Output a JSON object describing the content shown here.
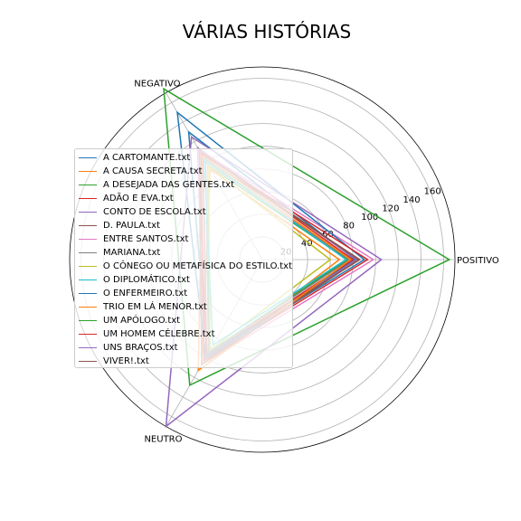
{
  "chart_data": {
    "type": "radar",
    "title": "VÁRIAS HISTÓRIAS",
    "axes": [
      "POSITIVO",
      "NEGATIVO",
      "NEUTRO"
    ],
    "rlim": [
      0,
      170
    ],
    "rticks": [
      20,
      40,
      60,
      80,
      100,
      120,
      140,
      160
    ],
    "grid": true,
    "legend_position": "center-left",
    "series": [
      {
        "name": "A CARTOMANTE.txt",
        "color": "#1f77b4",
        "values": [
          82,
          130,
          97
        ]
      },
      {
        "name": "A CAUSA SECRETA.txt",
        "color": "#ff7f0e",
        "values": [
          68,
          92,
          107
        ]
      },
      {
        "name": "A DESEJADA DAS GENTES.txt",
        "color": "#2ca02c",
        "values": [
          75,
          96,
          94
        ]
      },
      {
        "name": "ADÃO E EVA.txt",
        "color": "#d62728",
        "values": [
          80,
          112,
          99
        ]
      },
      {
        "name": "CONTO DE ESCOLA.txt",
        "color": "#9467bd",
        "values": [
          83,
          114,
          103
        ]
      },
      {
        "name": "D. PAULA.txt",
        "color": "#8c564b",
        "values": [
          86,
          105,
          98
        ]
      },
      {
        "name": "ENTRE SANTOS.txt",
        "color": "#e377c2",
        "values": [
          98,
          112,
          107
        ]
      },
      {
        "name": "MARIANA.txt",
        "color": "#7f7f7f",
        "values": [
          77,
          100,
          95
        ]
      },
      {
        "name": "O CÔNEGO OU METAFÍSICA DO ESTILO.txt",
        "color": "#bcbd22",
        "values": [
          60,
          95,
          92
        ]
      },
      {
        "name": "O DIPLOMÁTICO.txt",
        "color": "#17becf",
        "values": [
          74,
          103,
          87
        ]
      },
      {
        "name": "O ENFERMEIRO.txt",
        "color": "#1f77b4",
        "values": [
          90,
          150,
          100
        ]
      },
      {
        "name": "TRIO EM LÁ MENOR.txt",
        "color": "#ff7f0e",
        "values": [
          78,
          106,
          113
        ]
      },
      {
        "name": "UM APÓLOGO.txt",
        "color": "#2ca02c",
        "values": [
          165,
          174,
          128
        ]
      },
      {
        "name": "UM HOMEM CÉLEBRE.txt",
        "color": "#d62728",
        "values": [
          93,
          108,
          103
        ]
      },
      {
        "name": "UNS BRAÇOS.txt",
        "color": "#9467bd",
        "values": [
          105,
          125,
          170
        ]
      },
      {
        "name": "VIVER!.txt",
        "color": "#8c564b",
        "values": [
          85,
          111,
          107
        ]
      }
    ]
  }
}
